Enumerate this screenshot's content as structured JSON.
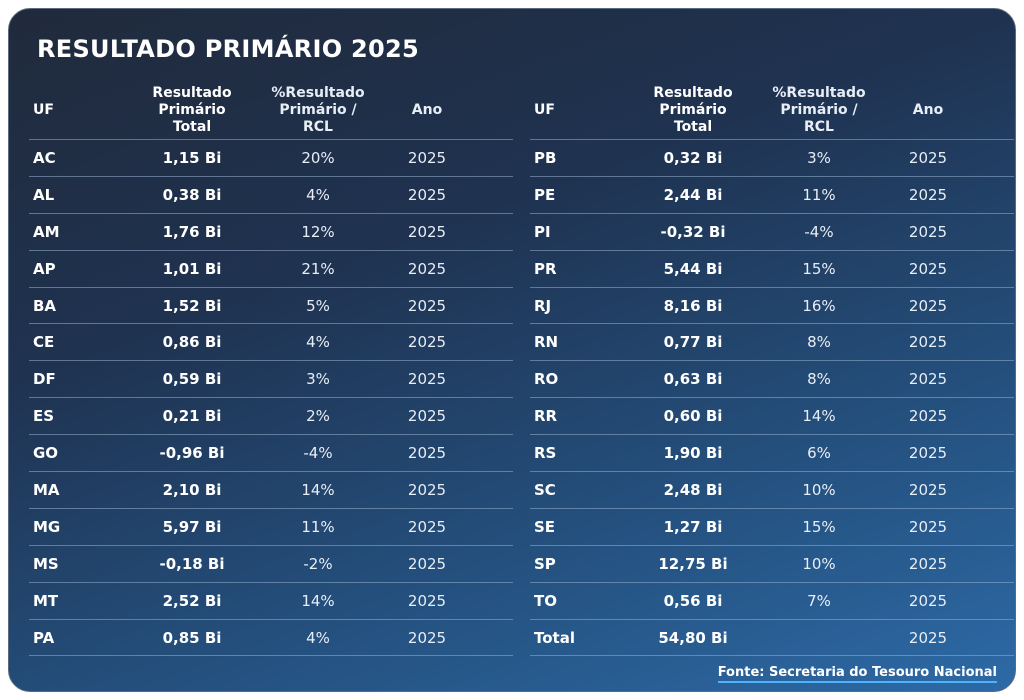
{
  "title": "RESULTADO PRIMÁRIO 2025",
  "headers": {
    "uf": "UF",
    "resultado_l1": "Resultado",
    "resultado_l2": "Primário",
    "resultado_l3": "Total",
    "pct_l1": "%Resultado",
    "pct_l2": "Primário /",
    "pct_l3": "RCL",
    "ano": "Ano"
  },
  "left_rows": [
    {
      "uf": "AC",
      "resultado": "1,15 Bi",
      "pct": "20%",
      "ano": "2025"
    },
    {
      "uf": "AL",
      "resultado": "0,38 Bi",
      "pct": "4%",
      "ano": "2025"
    },
    {
      "uf": "AM",
      "resultado": "1,76 Bi",
      "pct": "12%",
      "ano": "2025"
    },
    {
      "uf": "AP",
      "resultado": "1,01 Bi",
      "pct": "21%",
      "ano": "2025"
    },
    {
      "uf": "BA",
      "resultado": "1,52 Bi",
      "pct": "5%",
      "ano": "2025"
    },
    {
      "uf": "CE",
      "resultado": "0,86 Bi",
      "pct": "4%",
      "ano": "2025"
    },
    {
      "uf": "DF",
      "resultado": "0,59 Bi",
      "pct": "3%",
      "ano": "2025"
    },
    {
      "uf": "ES",
      "resultado": "0,21 Bi",
      "pct": "2%",
      "ano": "2025"
    },
    {
      "uf": "GO",
      "resultado": "-0,96 Bi",
      "pct": "-4%",
      "ano": "2025"
    },
    {
      "uf": "MA",
      "resultado": "2,10 Bi",
      "pct": "14%",
      "ano": "2025"
    },
    {
      "uf": "MG",
      "resultado": "5,97 Bi",
      "pct": "11%",
      "ano": "2025"
    },
    {
      "uf": "MS",
      "resultado": "-0,18 Bi",
      "pct": "-2%",
      "ano": "2025"
    },
    {
      "uf": "MT",
      "resultado": "2,52 Bi",
      "pct": "14%",
      "ano": "2025"
    },
    {
      "uf": "PA",
      "resultado": "0,85 Bi",
      "pct": "4%",
      "ano": "2025"
    }
  ],
  "right_rows": [
    {
      "uf": "PB",
      "resultado": "0,32 Bi",
      "pct": "3%",
      "ano": "2025"
    },
    {
      "uf": "PE",
      "resultado": "2,44 Bi",
      "pct": "11%",
      "ano": "2025"
    },
    {
      "uf": "PI",
      "resultado": "-0,32 Bi",
      "pct": "-4%",
      "ano": "2025"
    },
    {
      "uf": "PR",
      "resultado": "5,44 Bi",
      "pct": "15%",
      "ano": "2025"
    },
    {
      "uf": "RJ",
      "resultado": "8,16 Bi",
      "pct": "16%",
      "ano": "2025"
    },
    {
      "uf": "RN",
      "resultado": "0,77 Bi",
      "pct": "8%",
      "ano": "2025"
    },
    {
      "uf": "RO",
      "resultado": "0,63 Bi",
      "pct": "8%",
      "ano": "2025"
    },
    {
      "uf": "RR",
      "resultado": "0,60 Bi",
      "pct": "14%",
      "ano": "2025"
    },
    {
      "uf": "RS",
      "resultado": "1,90 Bi",
      "pct": "6%",
      "ano": "2025"
    },
    {
      "uf": "SC",
      "resultado": "2,48 Bi",
      "pct": "10%",
      "ano": "2025"
    },
    {
      "uf": "SE",
      "resultado": "1,27 Bi",
      "pct": "15%",
      "ano": "2025"
    },
    {
      "uf": "SP",
      "resultado": "12,75 Bi",
      "pct": "10%",
      "ano": "2025"
    },
    {
      "uf": "TO",
      "resultado": "0,56 Bi",
      "pct": "7%",
      "ano": "2025"
    },
    {
      "uf": "Total",
      "resultado": "54,80 Bi",
      "pct": "",
      "ano": "2025"
    }
  ],
  "source": "Fonte: Secretaria do Tesouro Nacional",
  "colors": {
    "background_dark": "#202a3b",
    "background_blue": "#2d6aa6",
    "source_underline": "#4fb2ff"
  }
}
